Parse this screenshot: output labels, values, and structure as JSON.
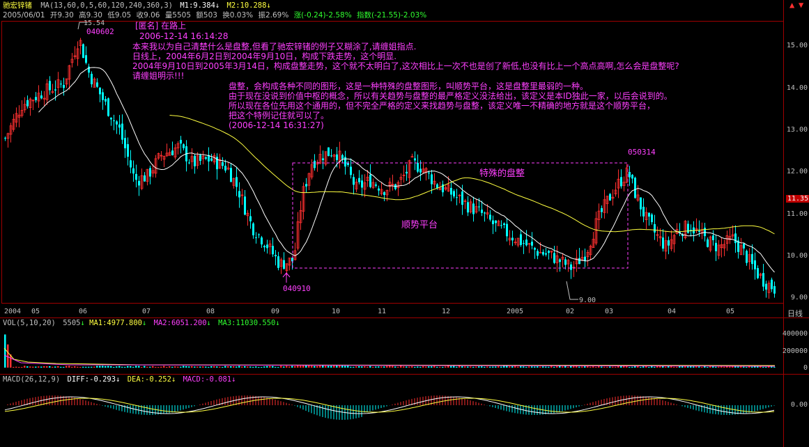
{
  "stock": {
    "name": "驰宏锌锗",
    "ma_params": "MA(13,60,0,5,60,120,240,360,3)",
    "m1": "M1:9.384",
    "m2": "M2:10.288",
    "arrow_down": "↓",
    "arrow_up": "↑"
  },
  "quote": {
    "date": "2005/06/01",
    "open": "开9.30",
    "high": "高9.30",
    "low": "低9.05",
    "close": "收9.06",
    "volume": "量5505",
    "amount": "额503",
    "turnover": "换0.03%",
    "amplitude": "振2.69%",
    "change": "涨(-0.24)-2.58%",
    "index": "指数(-21.55)-2.03%"
  },
  "price_axis": [
    "15.00",
    "14.00",
    "13.00",
    "12.00",
    "11.00",
    "10.00",
    "9.00"
  ],
  "current_price": "11.35",
  "month_axis": [
    "2004",
    "05",
    "06",
    "07",
    "08",
    "09",
    "10",
    "11",
    "12",
    "2005",
    "02",
    "03",
    "04",
    "05"
  ],
  "period": "日线",
  "annotations": {
    "high_point": "15.54",
    "high_date": "040602",
    "low_date": "040910",
    "peak_date": "050314",
    "low_point": "9.00",
    "special": "特殊的盘整",
    "platform": "顺势平台",
    "q_head": "[匿名] 在路上",
    "q_time": "2006-12-14 16:14:28",
    "q1": "本来我以为自己清楚什么是盘整,但看了驰宏锌锗的例子又糊涂了,请缠姐指点.",
    "q2": "日线上，2004年6月2日到2004年9月10日，构成下跌走势，这个明显.",
    "q3": "2004年9月10日到2005年3月14日，构成盘整走势，这个就不太明白了,这次相比上一次不也是创了新低,也没有比上一个高点高啊,怎么会是盘整呢?",
    "q4": "请缠姐明示!!!",
    "a1": "盘整，会构成各种不同的图形，这是一种特殊的盘整图形，叫顺势平台，这是盘整里最弱的一种。",
    "a2": "由于现在没说到价值中枢的概念，所以有关趋势与盘整的最严格定义没法给出，该定义是本ID独此一家，以后会说到的。",
    "a3": "所以现在各位先用这个通用的，但不完全严格的定义来找趋势与盘整，该定义唯一不精确的地方就是这个顺势平台，",
    "a4": "把这个特例记住就可以了。",
    "a_time": "(2006-12-14 16:31:27)"
  },
  "volume": {
    "label": "VOL(5,10,20)",
    "value": "5505",
    "ma1": "MA1:4977.800",
    "ma2": "MA2:6051.200",
    "ma3": "MA3:11030.550",
    "axis": [
      "400000",
      "200000",
      "0"
    ]
  },
  "macd": {
    "label": "MACD(26,12,9)",
    "diff": "DIFF:-0.293",
    "dea": "DEA:-0.252",
    "macd": "MACD:-0.081",
    "axis": "0.00"
  },
  "colors": {
    "up": "#ff3030",
    "down": "#00ffff",
    "ma_short": "#ffffff",
    "ma_long": "#ffff40",
    "annotation": "#ff40ff",
    "border": "#a00000"
  }
}
